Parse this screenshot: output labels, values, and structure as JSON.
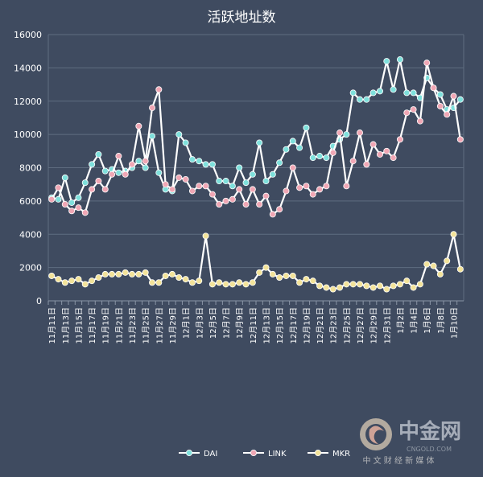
{
  "chart_data": {
    "type": "line",
    "title": "活跃地址数",
    "ylim": [
      0,
      16000
    ],
    "yticks": [
      0,
      2000,
      4000,
      6000,
      8000,
      10000,
      12000,
      14000,
      16000
    ],
    "ytick_labels": [
      "0",
      "2000",
      "4000",
      "6000",
      "8000",
      "10000",
      "12000",
      "14000",
      "16000"
    ],
    "grid": true,
    "legend_position": "bottom-center",
    "categories": [
      "11月11日",
      "11月12日",
      "11月13日",
      "11月14日",
      "11月15日",
      "11月16日",
      "11月17日",
      "11月18日",
      "11月19日",
      "11月20日",
      "11月21日",
      "11月22日",
      "11月23日",
      "11月24日",
      "11月25日",
      "11月26日",
      "11月27日",
      "11月28日",
      "11月29日",
      "11月30日",
      "12月1日",
      "12月2日",
      "12月3日",
      "12月4日",
      "12月5日",
      "12月6日",
      "12月7日",
      "12月8日",
      "12月9日",
      "12月10日",
      "12月11日",
      "12月12日",
      "12月13日",
      "12月14日",
      "12月15日",
      "12月16日",
      "12月17日",
      "12月18日",
      "12月19日",
      "12月20日",
      "12月21日",
      "12月22日",
      "12月23日",
      "12月24日",
      "12月25日",
      "12月26日",
      "12月27日",
      "12月28日",
      "12月29日",
      "12月30日",
      "12月31日",
      "1月1日",
      "1月2日",
      "1月3日",
      "1月4日",
      "1月5日",
      "1月6日",
      "1月7日",
      "1月8日",
      "1月9日",
      "1月10日",
      "1月11日"
    ],
    "tick_labels": [
      "11月11日",
      "11月13日",
      "11月15日",
      "11月17日",
      "11月19日",
      "11月21日",
      "11月23日",
      "11月25日",
      "11月27日",
      "11月29日",
      "12月1日",
      "12月3日",
      "12月5日",
      "12月7日",
      "12月9日",
      "12月11日",
      "12月13日",
      "12月15日",
      "12月17日",
      "12月19日",
      "12月21日",
      "12月23日",
      "12月25日",
      "12月27日",
      "12月29日",
      "12月31日",
      "1月2日",
      "1月4日",
      "1月6日",
      "1月8日",
      "1月10日"
    ],
    "series": [
      {
        "name": "DAI",
        "color": "#7fe0dc",
        "values": [
          6200,
          6100,
          7400,
          5900,
          6200,
          7100,
          8200,
          8800,
          7800,
          7900,
          7700,
          7800,
          8000,
          8400,
          8000,
          9900,
          7700,
          6700,
          6600,
          10000,
          9500,
          8500,
          8400,
          8200,
          8200,
          7200,
          7200,
          6900,
          8000,
          7100,
          7600,
          9500,
          7200,
          7600,
          8300,
          9100,
          9600,
          9200,
          10400,
          8600,
          8700,
          8600,
          9300,
          9700,
          10000,
          12500,
          12100,
          12100,
          12500,
          12600,
          14400,
          12700,
          14500,
          12500,
          12500,
          12200,
          13400,
          12800,
          12400,
          11500,
          11600,
          12100
        ]
      },
      {
        "name": "LINK",
        "color": "#f0a7b5",
        "values": [
          6100,
          6800,
          5800,
          5400,
          5600,
          5300,
          6700,
          7200,
          6700,
          7600,
          8700,
          7600,
          8200,
          10500,
          8400,
          11600,
          12700,
          7000,
          6700,
          7400,
          7300,
          6600,
          6900,
          6900,
          6400,
          5800,
          6000,
          6100,
          6700,
          5800,
          6700,
          5800,
          6300,
          5200,
          5500,
          6600,
          8000,
          6800,
          6900,
          6400,
          6700,
          6900,
          8900,
          10100,
          6900,
          8400,
          10100,
          8200,
          9400,
          8800,
          9000,
          8600,
          9700,
          11300,
          11500,
          10800,
          14300,
          12800,
          11700,
          11200,
          12300,
          9700
        ]
      },
      {
        "name": "MKR",
        "color": "#f3e39a",
        "values": [
          1500,
          1300,
          1100,
          1200,
          1300,
          1000,
          1200,
          1400,
          1600,
          1600,
          1600,
          1700,
          1600,
          1600,
          1700,
          1100,
          1100,
          1500,
          1600,
          1400,
          1300,
          1100,
          1200,
          3900,
          1000,
          1100,
          1000,
          1000,
          1100,
          1000,
          1100,
          1700,
          2000,
          1600,
          1400,
          1500,
          1500,
          1100,
          1300,
          1200,
          900,
          800,
          700,
          800,
          1000,
          1000,
          1000,
          900,
          800,
          900,
          700,
          900,
          1000,
          1200,
          800,
          1000,
          2200,
          2100,
          1600,
          2400,
          4000,
          1900
        ]
      }
    ]
  },
  "watermark": {
    "logo_text": "中金网",
    "domain": "CNGOLD.COM",
    "subtitle": "中 文 财 经 新 媒 体"
  }
}
